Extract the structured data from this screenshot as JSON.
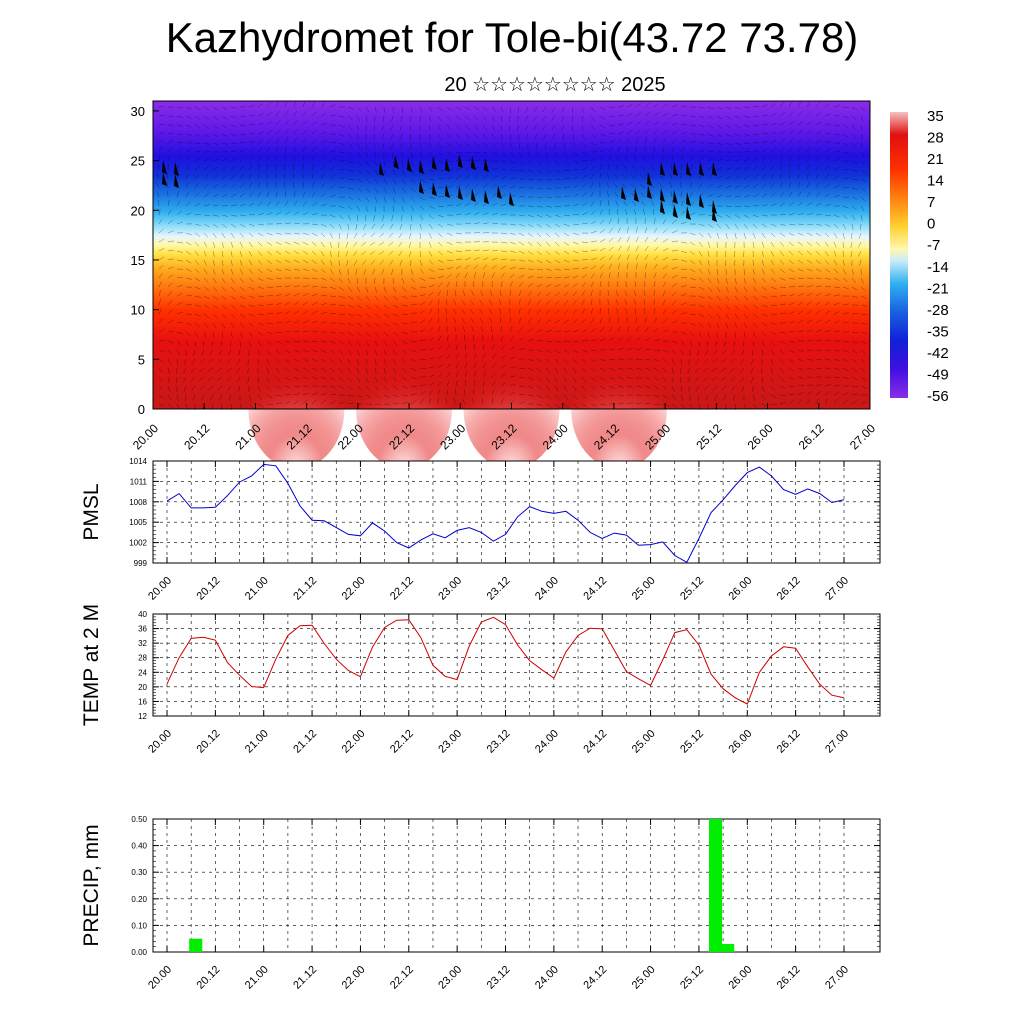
{
  "title": "Kazhydromet for Tole-bi(43.72 73.78)",
  "subtitle": "20 ☆☆☆☆☆☆☆☆ 2025",
  "chart_data": [
    {
      "type": "heatmap",
      "description_free": true,
      "ylim": [
        0,
        31
      ],
      "y_ticks": [
        0,
        5,
        10,
        15,
        20,
        25,
        30
      ],
      "x_ticks": [
        "20.00",
        "20.12",
        "21.00",
        "21.12",
        "22.00",
        "22.12",
        "23.00",
        "23.12",
        "24.00",
        "24.12",
        "25.00",
        "25.12",
        "26.00",
        "26.12",
        "27.00"
      ],
      "colorbar_labels": [
        "35",
        "28",
        "21",
        "14",
        "7",
        "0",
        "-7",
        "-14",
        "-21",
        "-28",
        "-35",
        "-42",
        "-49",
        "-56"
      ],
      "colorbar_colors": [
        "#f7b5b5",
        "#e81010",
        "#ff4000",
        "#ff7a10",
        "#ffb020",
        "#ffe060",
        "#fff8b0",
        "#e0f4ff",
        "#40c8f0",
        "#1890e0",
        "#1450e0",
        "#1020d8",
        "#3c10e8",
        "#8020e0"
      ]
    },
    {
      "type": "line",
      "ylabel": "PMSL",
      "ylim": [
        999,
        1014
      ],
      "y_ticks": [
        "999",
        "1002",
        "1005",
        "1008",
        "1011",
        "1014"
      ],
      "x_ticks": [
        "20.00",
        "20.12",
        "21.00",
        "21.12",
        "22.00",
        "22.12",
        "23.00",
        "23.12",
        "24.00",
        "24.12",
        "25.00",
        "25.12",
        "26.00",
        "26.12",
        "27.00"
      ],
      "color": "#0000cc",
      "x": [
        0,
        3,
        6,
        9,
        12,
        15,
        18,
        21,
        24,
        27,
        30,
        33,
        36,
        39,
        42,
        45,
        48,
        51,
        54,
        57,
        60,
        63,
        66,
        69,
        72,
        75,
        78,
        81,
        84,
        87,
        90,
        93,
        96,
        99,
        102,
        105,
        108,
        111,
        114,
        117,
        120,
        123,
        126,
        129,
        132,
        135,
        138,
        141,
        144,
        147,
        150,
        153,
        156,
        159,
        162,
        165,
        168
      ],
      "values": [
        1008.1,
        1009.2,
        1007.1,
        1007.1,
        1007.2,
        1008.9,
        1010.9,
        1011.8,
        1013.5,
        1013.3,
        1010.7,
        1007.4,
        1005.3,
        1005.2,
        1004.2,
        1003.2,
        1003.0,
        1004.9,
        1003.7,
        1002.0,
        1001.2,
        1002.4,
        1003.3,
        1002.7,
        1003.8,
        1004.2,
        1003.5,
        1002.2,
        1003.2,
        1005.8,
        1007.3,
        1006.6,
        1006.3,
        1006.6,
        1005.3,
        1003.5,
        1002.6,
        1003.4,
        1003.1,
        1001.6,
        1001.7,
        1002.1,
        1000.1,
        999.1,
        1002.6,
        1006.4,
        1008.3,
        1010.4,
        1012.3,
        1013.1,
        1011.8,
        1009.8,
        1009.1,
        1009.9,
        1009.2,
        1007.9,
        1008.3
      ]
    },
    {
      "type": "line",
      "ylabel": "TEMP at 2 M",
      "ylim": [
        12,
        40
      ],
      "y_ticks": [
        "12",
        "16",
        "20",
        "24",
        "28",
        "32",
        "36",
        "40"
      ],
      "x_ticks": [
        "20.00",
        "20.12",
        "21.00",
        "21.12",
        "22.00",
        "22.12",
        "23.00",
        "23.12",
        "24.00",
        "24.12",
        "25.00",
        "25.12",
        "26.00",
        "26.12",
        "27.00"
      ],
      "color": "#cc0000",
      "x": [
        0,
        3,
        6,
        9,
        12,
        15,
        18,
        21,
        24,
        27,
        30,
        33,
        36,
        39,
        42,
        45,
        48,
        51,
        54,
        57,
        60,
        63,
        66,
        69,
        72,
        75,
        78,
        81,
        84,
        87,
        90,
        93,
        96,
        99,
        102,
        105,
        108,
        111,
        114,
        117,
        120,
        123,
        126,
        129,
        132,
        135,
        138,
        141,
        144,
        147,
        150,
        153,
        156,
        159,
        162,
        165,
        168
      ],
      "values": [
        20.8,
        28.0,
        33.3,
        33.6,
        32.8,
        26.7,
        23.2,
        20.1,
        19.8,
        27.6,
        34.1,
        36.8,
        36.9,
        31.9,
        27.6,
        24.5,
        22.8,
        30.9,
        36.3,
        38.3,
        38.4,
        33.5,
        25.9,
        22.9,
        22.0,
        31.2,
        37.8,
        39.1,
        37.1,
        31.5,
        27.2,
        24.7,
        22.4,
        29.6,
        34.1,
        36.1,
        35.9,
        30.1,
        24.2,
        22.2,
        20.4,
        27.4,
        34.9,
        35.7,
        31.5,
        23.5,
        19.5,
        17.0,
        15.3,
        24.0,
        28.5,
        31.0,
        30.6,
        25.5,
        20.7,
        17.7,
        17.0
      ]
    },
    {
      "type": "bar",
      "ylabel": "PRECIP, mm",
      "ylim": [
        0,
        0.5
      ],
      "y_ticks": [
        "0.00",
        "0.10",
        "0.20",
        "0.30",
        "0.40",
        "0.50"
      ],
      "x_ticks": [
        "20.00",
        "20.12",
        "21.00",
        "21.12",
        "22.00",
        "22.12",
        "23.00",
        "23.12",
        "24.00",
        "24.12",
        "25.00",
        "25.12",
        "26.00",
        "26.12",
        "27.00"
      ],
      "color": "#00ee00",
      "x": [
        6,
        135,
        138
      ],
      "values": [
        0.05,
        0.5,
        0.03
      ]
    }
  ]
}
